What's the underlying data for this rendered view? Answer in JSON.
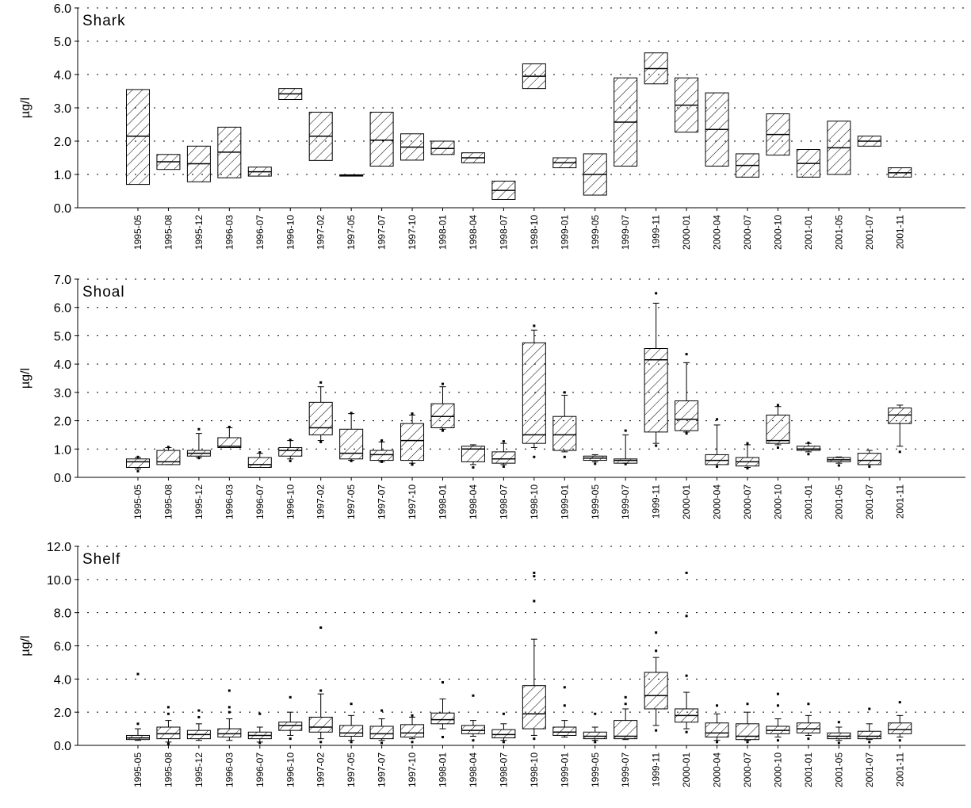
{
  "chart_data": [
    {
      "type": "box",
      "title": "Shark",
      "ylabel": "µg/l",
      "ylim": [
        0,
        6
      ],
      "yticks": [
        "0.0",
        "1.0",
        "2.0",
        "3.0",
        "4.0",
        "5.0",
        "6.0"
      ],
      "grid": true,
      "categories": [
        "1995-05",
        "1995-08",
        "1995-12",
        "1996-03",
        "1996-07",
        "1996-10",
        "1997-02",
        "1997-05",
        "1997-07",
        "1997-10",
        "1998-01",
        "1998-04",
        "1998-07",
        "1998-10",
        "1999-01",
        "1999-05",
        "1999-07",
        "1999-11",
        "2000-01",
        "2000-04",
        "2000-07",
        "2000-10",
        "2001-01",
        "2001-05",
        "2001-07",
        "2001-11"
      ],
      "boxes": [
        {
          "q1": 0.7,
          "median": 2.15,
          "q3": 3.55
        },
        {
          "q1": 1.15,
          "median": 1.38,
          "q3": 1.6
        },
        {
          "q1": 0.78,
          "median": 1.32,
          "q3": 1.85
        },
        {
          "q1": 0.9,
          "median": 1.67,
          "q3": 2.42
        },
        {
          "q1": 0.95,
          "median": 1.08,
          "q3": 1.22
        },
        {
          "q1": 3.25,
          "median": 3.42,
          "q3": 3.58
        },
        {
          "q1": 1.42,
          "median": 2.15,
          "q3": 2.87
        },
        {
          "q1": 0.95,
          "median": 0.97,
          "q3": 0.99
        },
        {
          "q1": 1.25,
          "median": 2.03,
          "q3": 2.87
        },
        {
          "q1": 1.43,
          "median": 1.82,
          "q3": 2.22
        },
        {
          "q1": 1.6,
          "median": 1.78,
          "q3": 2.0
        },
        {
          "q1": 1.35,
          "median": 1.5,
          "q3": 1.65
        },
        {
          "q1": 0.25,
          "median": 0.52,
          "q3": 0.8
        },
        {
          "q1": 3.58,
          "median": 3.95,
          "q3": 4.32
        },
        {
          "q1": 1.2,
          "median": 1.35,
          "q3": 1.5
        },
        {
          "q1": 0.38,
          "median": 1.0,
          "q3": 1.62
        },
        {
          "q1": 1.25,
          "median": 2.57,
          "q3": 3.9
        },
        {
          "q1": 3.72,
          "median": 4.18,
          "q3": 4.65
        },
        {
          "q1": 2.27,
          "median": 3.08,
          "q3": 3.9
        },
        {
          "q1": 1.25,
          "median": 2.35,
          "q3": 3.45
        },
        {
          "q1": 0.92,
          "median": 1.27,
          "q3": 1.62
        },
        {
          "q1": 1.58,
          "median": 2.2,
          "q3": 2.82
        },
        {
          "q1": 0.92,
          "median": 1.33,
          "q3": 1.75
        },
        {
          "q1": 1.0,
          "median": 1.8,
          "q3": 2.6
        },
        {
          "q1": 1.85,
          "median": 2.0,
          "q3": 2.15
        },
        {
          "q1": 0.92,
          "median": 1.05,
          "q3": 1.2
        }
      ]
    },
    {
      "type": "box",
      "title": "Shoal",
      "ylabel": "µg/l",
      "ylim": [
        0,
        7
      ],
      "yticks": [
        "0.0",
        "1.0",
        "2.0",
        "3.0",
        "4.0",
        "5.0",
        "6.0",
        "7.0"
      ],
      "grid": true,
      "categories": [
        "1995-05",
        "1995-08",
        "1995-12",
        "1996-03",
        "1996-07",
        "1996-10",
        "1997-02",
        "1997-05",
        "1997-07",
        "1997-10",
        "1998-01",
        "1998-04",
        "1998-07",
        "1998-10",
        "1999-01",
        "1999-05",
        "1999-07",
        "1999-11",
        "2000-01",
        "2000-04",
        "2000-07",
        "2000-10",
        "2001-01",
        "2001-05",
        "2001-07",
        "2001-11"
      ],
      "boxes": [
        {
          "low": 0.3,
          "q1": 0.35,
          "median": 0.55,
          "q3": 0.65,
          "high": 0.7,
          "outliers": [
            0.22,
            0.72
          ]
        },
        {
          "low": 0.45,
          "q1": 0.45,
          "median": 0.55,
          "q3": 0.95,
          "high": 1.05,
          "outliers": [
            1.07
          ]
        },
        {
          "low": 0.7,
          "q1": 0.75,
          "median": 0.85,
          "q3": 0.95,
          "high": 1.55,
          "outliers": [
            1.7,
            0.68
          ]
        },
        {
          "low": 1.05,
          "q1": 1.05,
          "median": 1.1,
          "q3": 1.4,
          "high": 1.75,
          "outliers": [
            1.78
          ]
        },
        {
          "low": 0.35,
          "q1": 0.35,
          "median": 0.45,
          "q3": 0.7,
          "high": 0.85,
          "outliers": [
            0.88
          ]
        },
        {
          "low": 0.65,
          "q1": 0.75,
          "median": 0.95,
          "q3": 1.05,
          "high": 1.3,
          "outliers": [
            0.58,
            1.32
          ]
        },
        {
          "low": 1.3,
          "q1": 1.5,
          "median": 1.75,
          "q3": 2.65,
          "high": 3.2,
          "outliers": [
            3.35,
            1.25
          ]
        },
        {
          "low": 0.6,
          "q1": 0.65,
          "median": 0.85,
          "q3": 1.7,
          "high": 2.25,
          "outliers": [
            2.27,
            0.58
          ]
        },
        {
          "low": 0.55,
          "q1": 0.6,
          "median": 0.8,
          "q3": 0.95,
          "high": 1.25,
          "outliers": [
            1.3,
            0.55
          ]
        },
        {
          "low": 0.5,
          "q1": 0.6,
          "median": 1.3,
          "q3": 1.9,
          "high": 2.2,
          "outliers": [
            2.25,
            0.45
          ]
        },
        {
          "low": 1.7,
          "q1": 1.75,
          "median": 2.15,
          "q3": 2.6,
          "high": 3.2,
          "outliers": [
            3.3,
            1.65
          ]
        },
        {
          "low": 0.45,
          "q1": 0.55,
          "median": 1.0,
          "q3": 1.1,
          "high": 1.15,
          "outliers": [
            0.35
          ]
        },
        {
          "low": 0.45,
          "q1": 0.5,
          "median": 0.65,
          "q3": 0.9,
          "high": 1.2,
          "outliers": [
            1.27,
            0.38
          ]
        },
        {
          "low": 1.05,
          "q1": 1.2,
          "median": 1.5,
          "q3": 4.75,
          "high": 5.2,
          "outliers": [
            5.35,
            0.72
          ]
        },
        {
          "low": 0.9,
          "q1": 0.95,
          "median": 1.5,
          "q3": 2.15,
          "high": 2.9,
          "outliers": [
            3.0,
            0.72
          ]
        },
        {
          "low": 0.55,
          "q1": 0.6,
          "median": 0.68,
          "q3": 0.75,
          "high": 0.8,
          "outliers": [
            0.48
          ]
        },
        {
          "low": 0.5,
          "q1": 0.5,
          "median": 0.6,
          "q3": 0.65,
          "high": 1.5,
          "outliers": [
            1.65,
            0.47
          ]
        },
        {
          "low": 1.2,
          "q1": 1.6,
          "median": 4.15,
          "q3": 4.55,
          "high": 6.15,
          "outliers": [
            6.5,
            1.12
          ]
        },
        {
          "low": 1.6,
          "q1": 1.65,
          "median": 2.05,
          "q3": 2.7,
          "high": 4.05,
          "outliers": [
            4.35,
            1.55
          ]
        },
        {
          "low": 0.45,
          "q1": 0.45,
          "median": 0.6,
          "q3": 0.8,
          "high": 1.85,
          "outliers": [
            2.05,
            0.38
          ]
        },
        {
          "low": 0.35,
          "q1": 0.4,
          "median": 0.55,
          "q3": 0.7,
          "high": 1.15,
          "outliers": [
            1.2,
            0.32
          ]
        },
        {
          "low": 1.15,
          "q1": 1.2,
          "median": 1.3,
          "q3": 2.2,
          "high": 2.5,
          "outliers": [
            2.55,
            1.05
          ]
        },
        {
          "low": 0.9,
          "q1": 0.95,
          "median": 1.0,
          "q3": 1.1,
          "high": 1.2,
          "outliers": [
            1.22,
            0.82
          ]
        },
        {
          "low": 0.5,
          "q1": 0.55,
          "median": 0.62,
          "q3": 0.7,
          "high": 0.72,
          "outliers": [
            0.42
          ]
        },
        {
          "low": 0.45,
          "q1": 0.45,
          "median": 0.6,
          "q3": 0.85,
          "high": 0.95,
          "outliers": [
            0.38
          ]
        },
        {
          "low": 1.1,
          "q1": 1.9,
          "median": 2.2,
          "q3": 2.45,
          "high": 2.55,
          "outliers": [
            0.9
          ]
        }
      ]
    },
    {
      "type": "box",
      "title": "Shelf",
      "ylabel": "µg/l",
      "ylim": [
        0,
        12
      ],
      "yticks": [
        "0.0",
        "2.0",
        "4.0",
        "6.0",
        "8.0",
        "10.0",
        "12.0"
      ],
      "grid": true,
      "categories": [
        "1995-05",
        "1995-08",
        "1995-12",
        "1996-03",
        "1996-07",
        "1996-10",
        "1997-02",
        "1997-05",
        "1997-07",
        "1997-10",
        "1998-01",
        "1998-04",
        "1998-07",
        "1998-10",
        "1999-01",
        "1999-05",
        "1999-07",
        "1999-11",
        "2000-01",
        "2000-04",
        "2000-07",
        "2000-10",
        "2001-01",
        "2001-05",
        "2001-07",
        "2001-11"
      ],
      "boxes": [
        {
          "low": 0.3,
          "q1": 0.35,
          "median": 0.45,
          "q3": 0.6,
          "high": 1.0,
          "outliers": [
            1.3,
            4.3
          ]
        },
        {
          "low": 0.2,
          "q1": 0.4,
          "median": 0.7,
          "q3": 1.1,
          "high": 1.5,
          "outliers": [
            2.3,
            1.9,
            0.1
          ]
        },
        {
          "low": 0.3,
          "q1": 0.4,
          "median": 0.65,
          "q3": 0.9,
          "high": 1.3,
          "outliers": [
            2.1,
            1.7
          ]
        },
        {
          "low": 0.3,
          "q1": 0.5,
          "median": 0.7,
          "q3": 1.0,
          "high": 1.6,
          "outliers": [
            2.3,
            3.3,
            2.0
          ]
        },
        {
          "low": 0.2,
          "q1": 0.4,
          "median": 0.6,
          "q3": 0.8,
          "high": 1.1,
          "outliers": [
            1.9,
            0.15
          ]
        },
        {
          "low": 0.6,
          "q1": 0.9,
          "median": 1.2,
          "q3": 1.4,
          "high": 2.0,
          "outliers": [
            2.9,
            0.4
          ]
        },
        {
          "low": 0.4,
          "q1": 0.8,
          "median": 1.1,
          "q3": 1.7,
          "high": 3.1,
          "outliers": [
            7.1,
            3.3,
            0.2
          ]
        },
        {
          "low": 0.3,
          "q1": 0.55,
          "median": 0.75,
          "q3": 1.2,
          "high": 1.8,
          "outliers": [
            2.5,
            0.2
          ]
        },
        {
          "low": 0.3,
          "q1": 0.4,
          "median": 0.7,
          "q3": 1.15,
          "high": 1.6,
          "outliers": [
            2.1,
            0.15
          ]
        },
        {
          "low": 0.4,
          "q1": 0.5,
          "median": 0.75,
          "q3": 1.25,
          "high": 1.7,
          "outliers": [
            1.8,
            0.2
          ]
        },
        {
          "low": 1.0,
          "q1": 1.3,
          "median": 1.55,
          "q3": 1.95,
          "high": 2.8,
          "outliers": [
            3.8,
            0.5
          ]
        },
        {
          "low": 0.55,
          "q1": 0.7,
          "median": 0.9,
          "q3": 1.2,
          "high": 1.5,
          "outliers": [
            3.0,
            0.3
          ]
        },
        {
          "low": 0.3,
          "q1": 0.45,
          "median": 0.65,
          "q3": 0.95,
          "high": 1.3,
          "outliers": [
            1.9,
            0.2
          ]
        },
        {
          "low": 0.6,
          "q1": 1.0,
          "median": 1.9,
          "q3": 3.6,
          "high": 6.4,
          "outliers": [
            10.2,
            10.4,
            8.7,
            0.4
          ]
        },
        {
          "low": 0.5,
          "q1": 0.6,
          "median": 0.8,
          "q3": 1.1,
          "high": 1.5,
          "outliers": [
            3.5,
            2.4
          ]
        },
        {
          "low": 0.3,
          "q1": 0.4,
          "median": 0.55,
          "q3": 0.8,
          "high": 1.1,
          "outliers": [
            1.9,
            0.2
          ]
        },
        {
          "low": 0.35,
          "q1": 0.4,
          "median": 0.55,
          "q3": 1.5,
          "high": 2.2,
          "outliers": [
            2.9,
            2.5
          ]
        },
        {
          "low": 1.2,
          "q1": 2.2,
          "median": 3.0,
          "q3": 4.4,
          "high": 5.3,
          "outliers": [
            6.8,
            5.7,
            0.9
          ]
        },
        {
          "low": 1.0,
          "q1": 1.4,
          "median": 1.8,
          "q3": 2.2,
          "high": 3.2,
          "outliers": [
            10.4,
            7.8,
            4.2,
            0.8
          ]
        },
        {
          "low": 0.3,
          "q1": 0.5,
          "median": 0.75,
          "q3": 1.35,
          "high": 1.9,
          "outliers": [
            2.4,
            0.2
          ]
        },
        {
          "low": 0.3,
          "q1": 0.35,
          "median": 0.55,
          "q3": 1.3,
          "high": 2.0,
          "outliers": [
            2.5,
            0.2
          ]
        },
        {
          "low": 0.5,
          "q1": 0.7,
          "median": 0.9,
          "q3": 1.15,
          "high": 1.6,
          "outliers": [
            3.1,
            2.4,
            0.3
          ]
        },
        {
          "low": 0.6,
          "q1": 0.75,
          "median": 1.0,
          "q3": 1.35,
          "high": 1.8,
          "outliers": [
            2.5,
            0.4
          ]
        },
        {
          "low": 0.3,
          "q1": 0.4,
          "median": 0.55,
          "q3": 0.75,
          "high": 1.1,
          "outliers": [
            1.4,
            0.15
          ]
        },
        {
          "low": 0.35,
          "q1": 0.4,
          "median": 0.55,
          "q3": 0.85,
          "high": 1.3,
          "outliers": [
            2.2,
            0.2
          ]
        },
        {
          "low": 0.5,
          "q1": 0.7,
          "median": 0.95,
          "q3": 1.35,
          "high": 1.8,
          "outliers": [
            2.6,
            0.3
          ]
        }
      ]
    }
  ]
}
